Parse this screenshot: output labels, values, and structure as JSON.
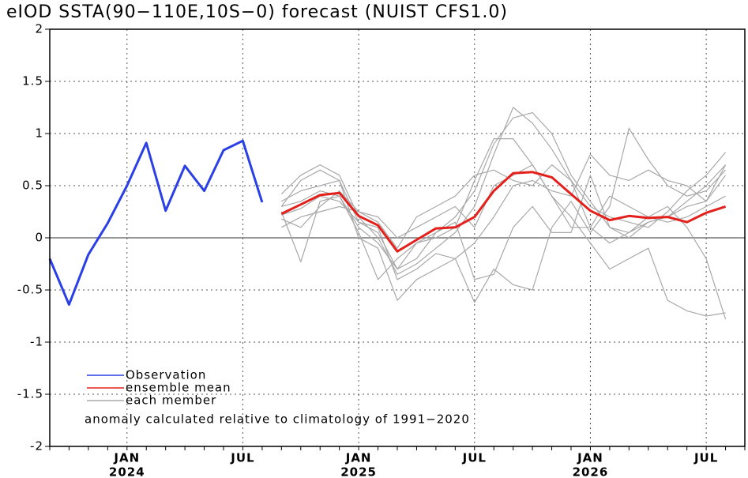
{
  "chart_data": {
    "type": "line",
    "title": "eIOD SSTA(90−110E,10S−0) forecast (NUIST CFS1.0)",
    "annotation": "anomaly calculated relative to climatology of 1991−2020",
    "categories": [
      null,
      null,
      null,
      null,
      "JAN",
      null,
      null,
      null,
      null,
      null,
      "JUL",
      null,
      null,
      null,
      null,
      null,
      "JAN",
      null,
      null,
      null,
      null,
      null,
      "JUL",
      null,
      null,
      null,
      null,
      null,
      "JAN",
      null,
      null,
      null,
      null,
      null,
      "JUL",
      null,
      null
    ],
    "years": [
      "2024",
      "2025",
      "2026"
    ],
    "ylim": [
      -2,
      2
    ],
    "yticks": [
      -2,
      -1.5,
      -1,
      -0.5,
      0,
      0.5,
      1,
      1.5,
      2
    ],
    "grid": true,
    "legend": "lower-left",
    "series": [
      {
        "name": "Observation",
        "color": "#2a3fe6",
        "width": 3,
        "values": [
          -0.2,
          -0.64,
          -0.16,
          0.14,
          0.5,
          0.91,
          0.26,
          0.69,
          0.45,
          0.84,
          0.93,
          0.34,
          null,
          null,
          null,
          null,
          null,
          null,
          null,
          null,
          null,
          null,
          null,
          null,
          null,
          null,
          null,
          null,
          null,
          null,
          null,
          null,
          null,
          null,
          null,
          null,
          null
        ]
      },
      {
        "name": "ensemble mean",
        "color": "#e3201b",
        "width": 3,
        "values": [
          null,
          null,
          null,
          null,
          null,
          null,
          null,
          null,
          null,
          null,
          null,
          null,
          0.23,
          0.32,
          0.41,
          0.43,
          0.21,
          0.12,
          -0.13,
          -0.02,
          0.09,
          0.1,
          0.2,
          0.45,
          0.62,
          0.63,
          0.58,
          0.42,
          0.26,
          0.17,
          0.21,
          0.19,
          0.2,
          0.15,
          0.24,
          0.3,
          null
        ]
      },
      {
        "name": "each member",
        "color": "#a8a8a8",
        "width": 1.2,
        "values": [
          [
            null,
            null,
            null,
            null,
            null,
            null,
            null,
            null,
            null,
            null,
            null,
            null,
            0.3,
            0.55,
            0.65,
            0.55,
            0.15,
            0.05,
            -0.3,
            -0.2,
            0.05,
            0.2,
            0.45,
            0.9,
            1.15,
            1.2,
            1.0,
            0.6,
            0.35,
            0.1,
            0.05,
            0.15,
            0.2,
            0.35,
            0.5,
            0.7,
            null
          ],
          [
            null,
            null,
            null,
            null,
            null,
            null,
            null,
            null,
            null,
            null,
            null,
            null,
            0.42,
            0.6,
            0.7,
            0.6,
            0.2,
            0.0,
            -0.35,
            -0.25,
            -0.1,
            0.05,
            0.3,
            0.8,
            1.25,
            1.1,
            0.85,
            0.55,
            0.3,
            0.2,
            0.15,
            0.1,
            0.25,
            0.45,
            0.6,
            0.82,
            null
          ],
          [
            null,
            null,
            null,
            null,
            null,
            null,
            null,
            null,
            null,
            null,
            null,
            null,
            0.18,
            0.1,
            0.3,
            0.45,
            0.25,
            0.15,
            -0.1,
            0.2,
            0.3,
            0.4,
            0.6,
            0.65,
            0.55,
            0.5,
            0.7,
            0.55,
            0.1,
            -0.05,
            0.05,
            0.2,
            0.3,
            0.1,
            -0.2,
            -0.78,
            null
          ],
          [
            null,
            null,
            null,
            null,
            null,
            null,
            null,
            null,
            null,
            null,
            null,
            null,
            0.25,
            -0.23,
            0.35,
            0.4,
            0.05,
            -0.4,
            -0.2,
            -0.05,
            0.0,
            0.1,
            0.55,
            0.95,
            0.95,
            0.7,
            0.4,
            0.2,
            -0.05,
            -0.3,
            -0.2,
            -0.1,
            -0.6,
            -0.7,
            -0.75,
            -0.72,
            null
          ],
          [
            null,
            null,
            null,
            null,
            null,
            null,
            null,
            null,
            null,
            null,
            null,
            null,
            0.35,
            0.45,
            0.5,
            0.55,
            0.0,
            -0.1,
            -0.6,
            -0.4,
            -0.3,
            -0.2,
            -0.05,
            0.2,
            0.5,
            0.55,
            0.45,
            0.4,
            0.8,
            0.6,
            0.55,
            0.65,
            0.55,
            0.5,
            0.35,
            0.6,
            null
          ],
          [
            null,
            null,
            null,
            null,
            null,
            null,
            null,
            null,
            null,
            null,
            null,
            null,
            0.22,
            0.28,
            0.4,
            0.35,
            0.15,
            0.1,
            -0.4,
            -0.3,
            -0.15,
            -0.2,
            -0.62,
            -0.3,
            -0.45,
            -0.5,
            0.1,
            0.35,
            0.05,
            0.3,
            1.05,
            0.75,
            0.5,
            0.4,
            0.45,
            0.65,
            null
          ],
          [
            null,
            null,
            null,
            null,
            null,
            null,
            null,
            null,
            null,
            null,
            null,
            null,
            0.1,
            0.2,
            0.25,
            0.3,
            0.25,
            0.2,
            0.0,
            0.1,
            0.2,
            0.3,
            0.1,
            0.5,
            0.6,
            0.7,
            0.4,
            0.1,
            0.1,
            0.4,
            0.3,
            0.2,
            0.15,
            0.2,
            0.3,
            0.4,
            null
          ],
          [
            null,
            null,
            null,
            null,
            null,
            null,
            null,
            null,
            null,
            null,
            null,
            null,
            0.3,
            0.35,
            0.45,
            0.4,
            0.1,
            -0.05,
            -0.3,
            -0.05,
            0.05,
            0.15,
            -0.4,
            -0.35,
            0.1,
            0.3,
            0.05,
            0.05,
            0.6,
            0.1,
            0.0,
            0.15,
            0.2,
            0.3,
            0.35,
            0.7,
            null
          ]
        ]
      }
    ]
  }
}
